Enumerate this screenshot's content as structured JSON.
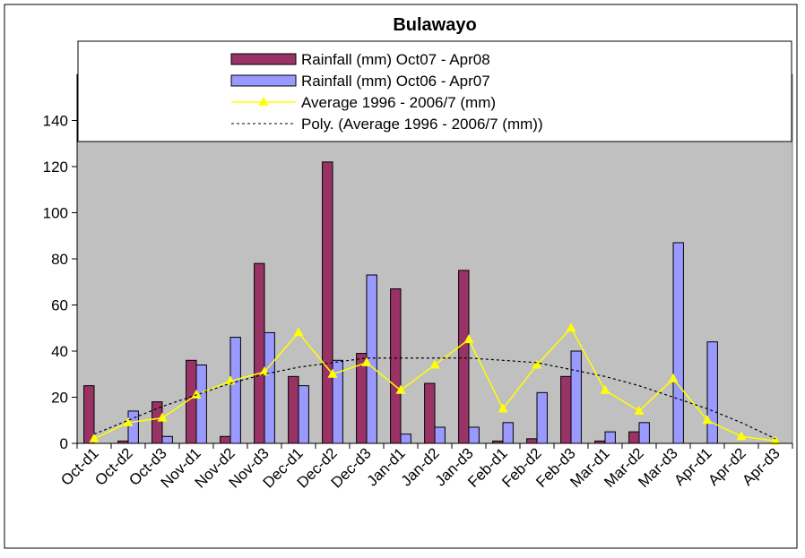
{
  "chart_data": {
    "type": "bar",
    "title": "Bulawayo",
    "categories": [
      "Oct-d1",
      "Oct-d2",
      "Oct-d3",
      "Nov-d1",
      "Nov-d2",
      "Nov-d3",
      "Dec-d1",
      "Dec-d2",
      "Dec-d3",
      "Jan-d1",
      "Jan-d2",
      "Jan-d3",
      "Feb-d1",
      "Feb-d2",
      "Feb-d3",
      "Mar-d1",
      "Mar-d2",
      "Mar-d3",
      "Apr-d1",
      "Apr-d2",
      "Apr-d3"
    ],
    "series": [
      {
        "name": "Rainfall (mm) Oct07 - Apr08",
        "type": "bar",
        "color": "#993366",
        "values": [
          25,
          1,
          18,
          36,
          3,
          78,
          29,
          122,
          39,
          67,
          26,
          75,
          1,
          2,
          29,
          1,
          5,
          0,
          0,
          0,
          0
        ]
      },
      {
        "name": "Rainfall (mm) Oct06 - Apr07",
        "type": "bar",
        "color": "#9999ff",
        "values": [
          0,
          14,
          3,
          34,
          46,
          48,
          25,
          36,
          73,
          4,
          7,
          7,
          9,
          22,
          40,
          5,
          9,
          87,
          44,
          0,
          0
        ]
      },
      {
        "name": "Average 1996 - 2006/7 (mm)",
        "type": "line",
        "color": "#ffff00",
        "values": [
          2,
          9,
          11,
          21,
          27,
          31,
          48,
          30,
          35,
          23,
          34,
          45,
          15,
          34,
          50,
          23,
          14,
          28,
          10,
          3,
          1
        ]
      },
      {
        "name": "Poly. (Average 1996 - 2006/7 (mm))",
        "type": "trend",
        "color": "#000000",
        "values": [
          4,
          10,
          16,
          21,
          26,
          30,
          33,
          35,
          37,
          37,
          37,
          37,
          36,
          35,
          32,
          29,
          25,
          20,
          15,
          9,
          2
        ]
      }
    ],
    "ylim": [
      0,
      160
    ],
    "yticks": [
      0,
      20,
      40,
      60,
      80,
      100,
      120,
      140
    ],
    "legend": "top"
  }
}
